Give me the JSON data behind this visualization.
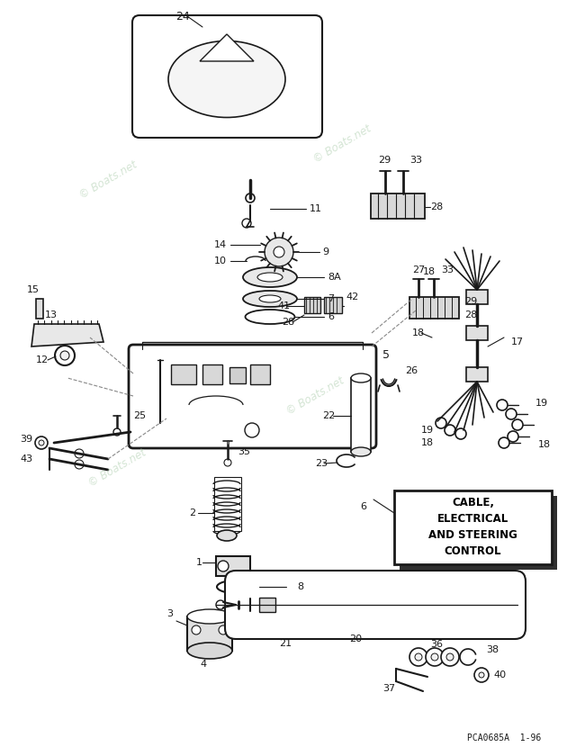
{
  "bg_color": "#ffffff",
  "line_color": "#1a1a1a",
  "watermark_color": "#b8d4b8",
  "part_label": "PCA0685A  1-96",
  "box_label": [
    "CABLE,",
    "ELECTRICAL",
    "AND STEERING",
    "CONTROL"
  ]
}
